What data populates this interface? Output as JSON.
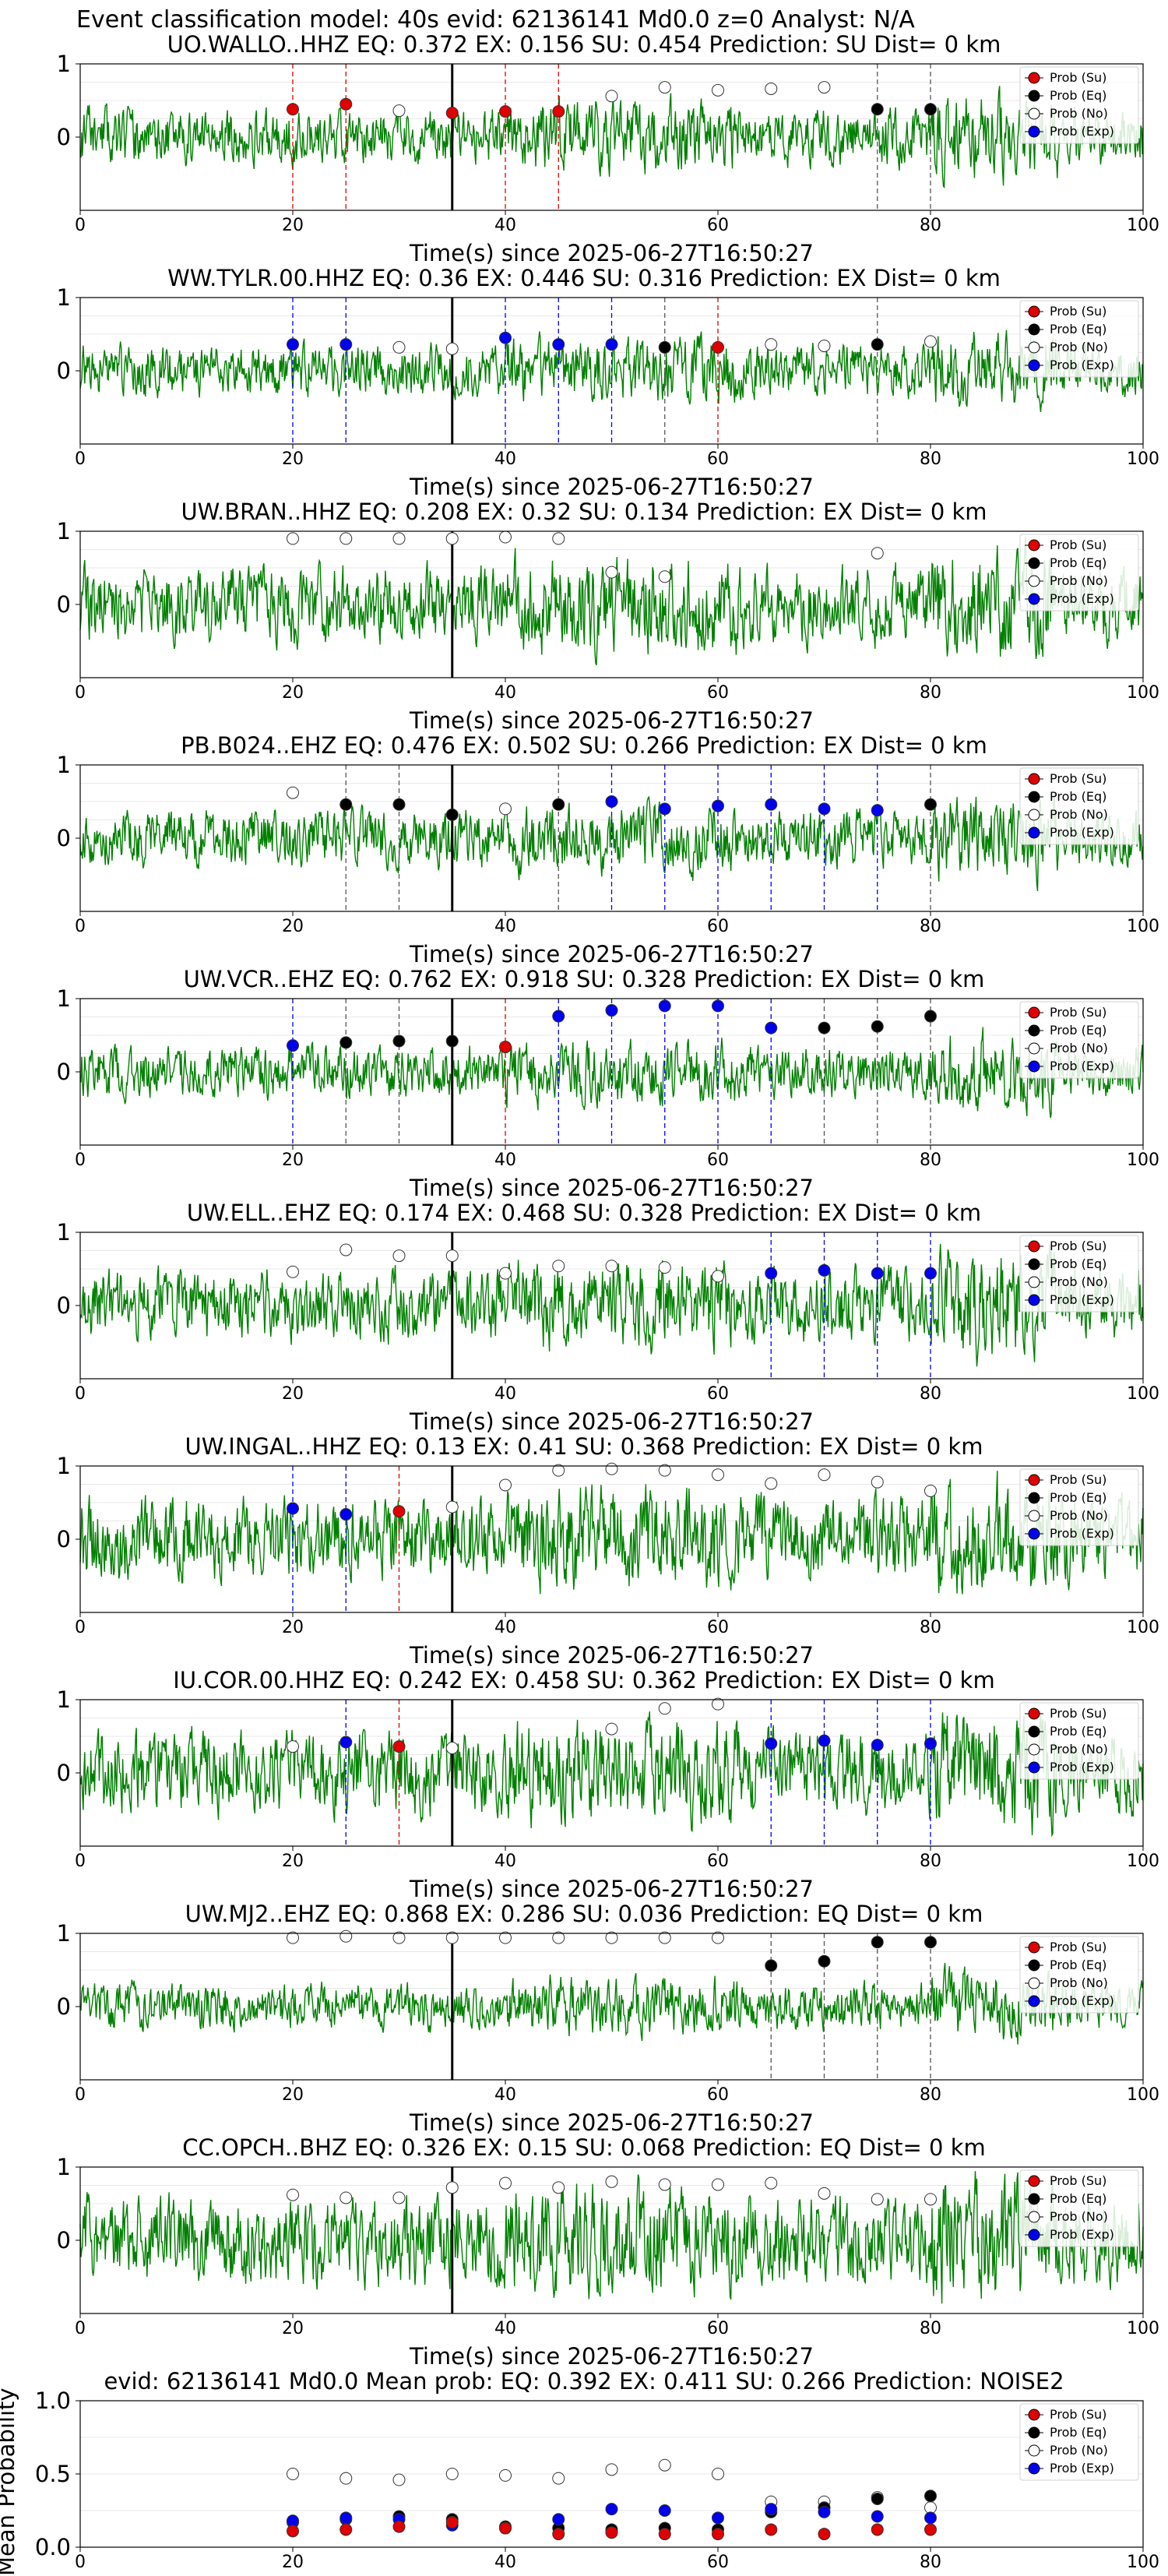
{
  "figure_title": "Event classification model: 40s evid: 62136141 Md0.0 z=0 Analyst: N/A",
  "chart_data": {
    "type": "line+scatter",
    "legend_position": "right",
    "legend": [
      {
        "key": "su",
        "label": "Prob (Su)",
        "color": "#e00000"
      },
      {
        "key": "eq",
        "label": "Prob (Eq)",
        "color": "#000000"
      },
      {
        "key": "no",
        "label": "Prob (No)",
        "color": "#ffffff"
      },
      {
        "key": "ex",
        "label": "Prob (Exp)",
        "color": "#0000ee"
      }
    ],
    "waveform_color": "#008000",
    "x_ticks": [
      0,
      20,
      40,
      60,
      80,
      100
    ],
    "x_range": [
      0,
      100
    ],
    "pick_time": 35,
    "stations": [
      {
        "title": "UO.WALLO..HHZ   EQ: 0.372  EX: 0.156  SU: 0.454   Prediction: SU    Dist= 0 km",
        "xlabel": "Time(s) since 2025-06-27T16:50:27",
        "ylim": [
          -1,
          1
        ],
        "y_ticks": [
          0,
          1
        ],
        "amp": 0.55,
        "seed": 11,
        "points": [
          {
            "x": 20,
            "y": 0.38,
            "c": "su"
          },
          {
            "x": 25,
            "y": 0.45,
            "c": "su"
          },
          {
            "x": 30,
            "y": 0.36,
            "c": "no"
          },
          {
            "x": 35,
            "y": 0.33,
            "c": "su"
          },
          {
            "x": 40,
            "y": 0.35,
            "c": "su"
          },
          {
            "x": 45,
            "y": 0.35,
            "c": "su"
          },
          {
            "x": 50,
            "y": 0.56,
            "c": "no"
          },
          {
            "x": 55,
            "y": 0.68,
            "c": "no"
          },
          {
            "x": 60,
            "y": 0.64,
            "c": "no"
          },
          {
            "x": 65,
            "y": 0.66,
            "c": "no"
          },
          {
            "x": 70,
            "y": 0.68,
            "c": "no"
          },
          {
            "x": 75,
            "y": 0.38,
            "c": "eq"
          },
          {
            "x": 80,
            "y": 0.38,
            "c": "eq"
          }
        ]
      },
      {
        "title": "WW.TYLR.00.HHZ   EQ: 0.36  EX: 0.446  SU: 0.316   Prediction: EX    Dist= 0 km",
        "xlabel": "Time(s) since 2025-06-27T16:50:27",
        "ylim": [
          -1,
          1
        ],
        "y_ticks": [
          0,
          1
        ],
        "amp": 0.5,
        "seed": 23,
        "points": [
          {
            "x": 20,
            "y": 0.36,
            "c": "ex"
          },
          {
            "x": 25,
            "y": 0.36,
            "c": "ex"
          },
          {
            "x": 30,
            "y": 0.32,
            "c": "no"
          },
          {
            "x": 35,
            "y": 0.3,
            "c": "no"
          },
          {
            "x": 40,
            "y": 0.45,
            "c": "ex"
          },
          {
            "x": 45,
            "y": 0.36,
            "c": "ex"
          },
          {
            "x": 50,
            "y": 0.36,
            "c": "ex"
          },
          {
            "x": 55,
            "y": 0.32,
            "c": "eq"
          },
          {
            "x": 60,
            "y": 0.32,
            "c": "su"
          },
          {
            "x": 65,
            "y": 0.36,
            "c": "no"
          },
          {
            "x": 70,
            "y": 0.34,
            "c": "no"
          },
          {
            "x": 75,
            "y": 0.36,
            "c": "eq"
          },
          {
            "x": 80,
            "y": 0.4,
            "c": "no"
          }
        ]
      },
      {
        "title": "UW.BRAN..HHZ   EQ: 0.208  EX: 0.32  SU: 0.134   Prediction: EX    Dist= 0 km",
        "xlabel": "Time(s) since 2025-06-27T16:50:27",
        "ylim": [
          -1,
          1
        ],
        "y_ticks": [
          0,
          1
        ],
        "amp": 0.75,
        "seed": 37,
        "points": [
          {
            "x": 20,
            "y": 0.9,
            "c": "no"
          },
          {
            "x": 25,
            "y": 0.9,
            "c": "no"
          },
          {
            "x": 30,
            "y": 0.9,
            "c": "no"
          },
          {
            "x": 35,
            "y": 0.9,
            "c": "no"
          },
          {
            "x": 40,
            "y": 0.92,
            "c": "no"
          },
          {
            "x": 45,
            "y": 0.9,
            "c": "no"
          },
          {
            "x": 50,
            "y": 0.44,
            "c": "no"
          },
          {
            "x": 55,
            "y": 0.38,
            "c": "no"
          },
          {
            "x": 75,
            "y": 0.7,
            "c": "no"
          }
        ]
      },
      {
        "title": "PB.B024..EHZ   EQ: 0.476  EX: 0.502  SU: 0.266   Prediction: EX    Dist= 0 km",
        "xlabel": "Time(s) since 2025-06-27T16:50:27",
        "ylim": [
          -1,
          1
        ],
        "y_ticks": [
          0,
          1
        ],
        "amp": 0.55,
        "seed": 41,
        "points": [
          {
            "x": 20,
            "y": 0.62,
            "c": "no"
          },
          {
            "x": 25,
            "y": 0.46,
            "c": "eq"
          },
          {
            "x": 30,
            "y": 0.46,
            "c": "eq"
          },
          {
            "x": 35,
            "y": 0.32,
            "c": "eq"
          },
          {
            "x": 40,
            "y": 0.4,
            "c": "no"
          },
          {
            "x": 45,
            "y": 0.46,
            "c": "eq"
          },
          {
            "x": 50,
            "y": 0.5,
            "c": "ex"
          },
          {
            "x": 55,
            "y": 0.4,
            "c": "ex"
          },
          {
            "x": 60,
            "y": 0.44,
            "c": "ex"
          },
          {
            "x": 65,
            "y": 0.46,
            "c": "ex"
          },
          {
            "x": 70,
            "y": 0.4,
            "c": "ex"
          },
          {
            "x": 75,
            "y": 0.38,
            "c": "ex"
          },
          {
            "x": 80,
            "y": 0.46,
            "c": "eq"
          }
        ]
      },
      {
        "title": "UW.VCR..EHZ   EQ: 0.762  EX: 0.918  SU: 0.328   Prediction: EX    Dist= 0 km",
        "xlabel": "Time(s) since 2025-06-27T16:50:27",
        "ylim": [
          -1,
          1
        ],
        "y_ticks": [
          0,
          1
        ],
        "amp": 0.5,
        "seed": 53,
        "points": [
          {
            "x": 20,
            "y": 0.36,
            "c": "ex"
          },
          {
            "x": 25,
            "y": 0.4,
            "c": "eq"
          },
          {
            "x": 30,
            "y": 0.42,
            "c": "eq"
          },
          {
            "x": 35,
            "y": 0.42,
            "c": "eq"
          },
          {
            "x": 40,
            "y": 0.34,
            "c": "su"
          },
          {
            "x": 45,
            "y": 0.76,
            "c": "ex"
          },
          {
            "x": 50,
            "y": 0.84,
            "c": "ex"
          },
          {
            "x": 55,
            "y": 0.9,
            "c": "ex"
          },
          {
            "x": 60,
            "y": 0.9,
            "c": "ex"
          },
          {
            "x": 65,
            "y": 0.6,
            "c": "ex"
          },
          {
            "x": 70,
            "y": 0.6,
            "c": "eq"
          },
          {
            "x": 75,
            "y": 0.62,
            "c": "eq"
          },
          {
            "x": 80,
            "y": 0.76,
            "c": "eq"
          }
        ]
      },
      {
        "title": "UW.ELL..EHZ   EQ: 0.174  EX: 0.468  SU: 0.328   Prediction: EX    Dist= 0 km",
        "xlabel": "Time(s) since 2025-06-27T16:50:27",
        "ylim": [
          -1,
          1
        ],
        "y_ticks": [
          0,
          1
        ],
        "amp": 0.7,
        "seed": 67,
        "points": [
          {
            "x": 20,
            "y": 0.46,
            "c": "no"
          },
          {
            "x": 25,
            "y": 0.76,
            "c": "no"
          },
          {
            "x": 30,
            "y": 0.68,
            "c": "no"
          },
          {
            "x": 35,
            "y": 0.68,
            "c": "no"
          },
          {
            "x": 40,
            "y": 0.44,
            "c": "no"
          },
          {
            "x": 45,
            "y": 0.54,
            "c": "no"
          },
          {
            "x": 50,
            "y": 0.54,
            "c": "no"
          },
          {
            "x": 55,
            "y": 0.52,
            "c": "no"
          },
          {
            "x": 60,
            "y": 0.4,
            "c": "no"
          },
          {
            "x": 65,
            "y": 0.44,
            "c": "ex"
          },
          {
            "x": 70,
            "y": 0.48,
            "c": "ex"
          },
          {
            "x": 75,
            "y": 0.44,
            "c": "ex"
          },
          {
            "x": 80,
            "y": 0.44,
            "c": "ex"
          }
        ]
      },
      {
        "title": "UW.INGAL..HHZ   EQ: 0.13  EX: 0.41  SU: 0.368   Prediction: EX    Dist= 0 km",
        "xlabel": "Time(s) since 2025-06-27T16:50:27",
        "ylim": [
          -1,
          1
        ],
        "y_ticks": [
          0,
          1
        ],
        "amp": 0.8,
        "seed": 79,
        "points": [
          {
            "x": 20,
            "y": 0.42,
            "c": "ex"
          },
          {
            "x": 25,
            "y": 0.34,
            "c": "ex"
          },
          {
            "x": 30,
            "y": 0.38,
            "c": "su"
          },
          {
            "x": 35,
            "y": 0.44,
            "c": "no"
          },
          {
            "x": 40,
            "y": 0.74,
            "c": "no"
          },
          {
            "x": 45,
            "y": 0.94,
            "c": "no"
          },
          {
            "x": 50,
            "y": 0.96,
            "c": "no"
          },
          {
            "x": 55,
            "y": 0.94,
            "c": "no"
          },
          {
            "x": 60,
            "y": 0.88,
            "c": "no"
          },
          {
            "x": 65,
            "y": 0.76,
            "c": "no"
          },
          {
            "x": 70,
            "y": 0.88,
            "c": "no"
          },
          {
            "x": 75,
            "y": 0.78,
            "c": "no"
          },
          {
            "x": 80,
            "y": 0.66,
            "c": "no"
          }
        ]
      },
      {
        "title": "IU.COR.00.HHZ   EQ: 0.242  EX: 0.458  SU: 0.362   Prediction: EX    Dist= 0 km",
        "xlabel": "Time(s) since 2025-06-27T16:50:27",
        "ylim": [
          -1,
          1
        ],
        "y_ticks": [
          0,
          1
        ],
        "amp": 0.8,
        "seed": 83,
        "points": [
          {
            "x": 20,
            "y": 0.36,
            "c": "no"
          },
          {
            "x": 25,
            "y": 0.42,
            "c": "ex"
          },
          {
            "x": 30,
            "y": 0.36,
            "c": "su"
          },
          {
            "x": 35,
            "y": 0.34,
            "c": "no"
          },
          {
            "x": 50,
            "y": 0.6,
            "c": "no"
          },
          {
            "x": 55,
            "y": 0.88,
            "c": "no"
          },
          {
            "x": 60,
            "y": 0.94,
            "c": "no"
          },
          {
            "x": 65,
            "y": 0.4,
            "c": "ex"
          },
          {
            "x": 70,
            "y": 0.44,
            "c": "ex"
          },
          {
            "x": 75,
            "y": 0.38,
            "c": "ex"
          },
          {
            "x": 80,
            "y": 0.4,
            "c": "ex"
          }
        ]
      },
      {
        "title": "UW.MJ2..EHZ   EQ: 0.868  EX: 0.286  SU: 0.036   Prediction: EQ    Dist= 0 km",
        "xlabel": "Time(s) since 2025-06-27T16:50:27",
        "ylim": [
          -1,
          1
        ],
        "y_ticks": [
          0,
          1
        ],
        "amp": 0.45,
        "seed": 97,
        "points": [
          {
            "x": 20,
            "y": 0.94,
            "c": "no"
          },
          {
            "x": 25,
            "y": 0.96,
            "c": "no"
          },
          {
            "x": 30,
            "y": 0.94,
            "c": "no"
          },
          {
            "x": 35,
            "y": 0.94,
            "c": "no"
          },
          {
            "x": 40,
            "y": 0.94,
            "c": "no"
          },
          {
            "x": 45,
            "y": 0.94,
            "c": "no"
          },
          {
            "x": 50,
            "y": 0.94,
            "c": "no"
          },
          {
            "x": 55,
            "y": 0.94,
            "c": "no"
          },
          {
            "x": 60,
            "y": 0.94,
            "c": "no"
          },
          {
            "x": 65,
            "y": 0.56,
            "c": "eq"
          },
          {
            "x": 70,
            "y": 0.62,
            "c": "eq"
          },
          {
            "x": 75,
            "y": 0.88,
            "c": "eq"
          },
          {
            "x": 80,
            "y": 0.88,
            "c": "eq"
          }
        ]
      },
      {
        "title": "CC.OPCH..BHZ   EQ: 0.326  EX: 0.15  SU: 0.068   Prediction: EQ    Dist= 0 km",
        "xlabel": "Time(s) since 2025-06-27T16:50:27",
        "ylim": [
          -1,
          1
        ],
        "y_ticks": [
          0,
          1
        ],
        "amp": 0.85,
        "seed": 101,
        "points": [
          {
            "x": 20,
            "y": 0.62,
            "c": "no"
          },
          {
            "x": 25,
            "y": 0.58,
            "c": "no"
          },
          {
            "x": 30,
            "y": 0.58,
            "c": "no"
          },
          {
            "x": 35,
            "y": 0.72,
            "c": "no"
          },
          {
            "x": 40,
            "y": 0.78,
            "c": "no"
          },
          {
            "x": 45,
            "y": 0.72,
            "c": "no"
          },
          {
            "x": 50,
            "y": 0.8,
            "c": "no"
          },
          {
            "x": 55,
            "y": 0.76,
            "c": "no"
          },
          {
            "x": 60,
            "y": 0.76,
            "c": "no"
          },
          {
            "x": 65,
            "y": 0.78,
            "c": "no"
          },
          {
            "x": 70,
            "y": 0.64,
            "c": "no"
          },
          {
            "x": 75,
            "y": 0.56,
            "c": "no"
          },
          {
            "x": 80,
            "y": 0.56,
            "c": "no"
          }
        ]
      }
    ],
    "mean": {
      "title": "evid: 62136141  Md0.0   Mean prob:   EQ: 0.392  EX: 0.411  SU: 0.266   Prediction: NOISE2",
      "ylabel": "Mean Probability",
      "ylim": [
        0,
        1
      ],
      "y_ticks": [
        0.0,
        0.5,
        1.0
      ],
      "x": [
        20,
        25,
        30,
        35,
        40,
        45,
        50,
        55,
        60,
        65,
        70,
        75,
        80
      ],
      "series": {
        "no": [
          0.5,
          0.47,
          0.46,
          0.5,
          0.49,
          0.47,
          0.53,
          0.56,
          0.5,
          0.31,
          0.31,
          0.34,
          0.27
        ],
        "eq": [
          0.17,
          0.19,
          0.21,
          0.19,
          0.14,
          0.13,
          0.12,
          0.13,
          0.12,
          0.24,
          0.27,
          0.33,
          0.35
        ],
        "ex": [
          0.18,
          0.2,
          0.19,
          0.15,
          0.13,
          0.19,
          0.26,
          0.25,
          0.2,
          0.26,
          0.24,
          0.21,
          0.2
        ],
        "su": [
          0.11,
          0.12,
          0.14,
          0.17,
          0.13,
          0.09,
          0.1,
          0.09,
          0.09,
          0.12,
          0.09,
          0.12,
          0.12
        ]
      }
    }
  }
}
